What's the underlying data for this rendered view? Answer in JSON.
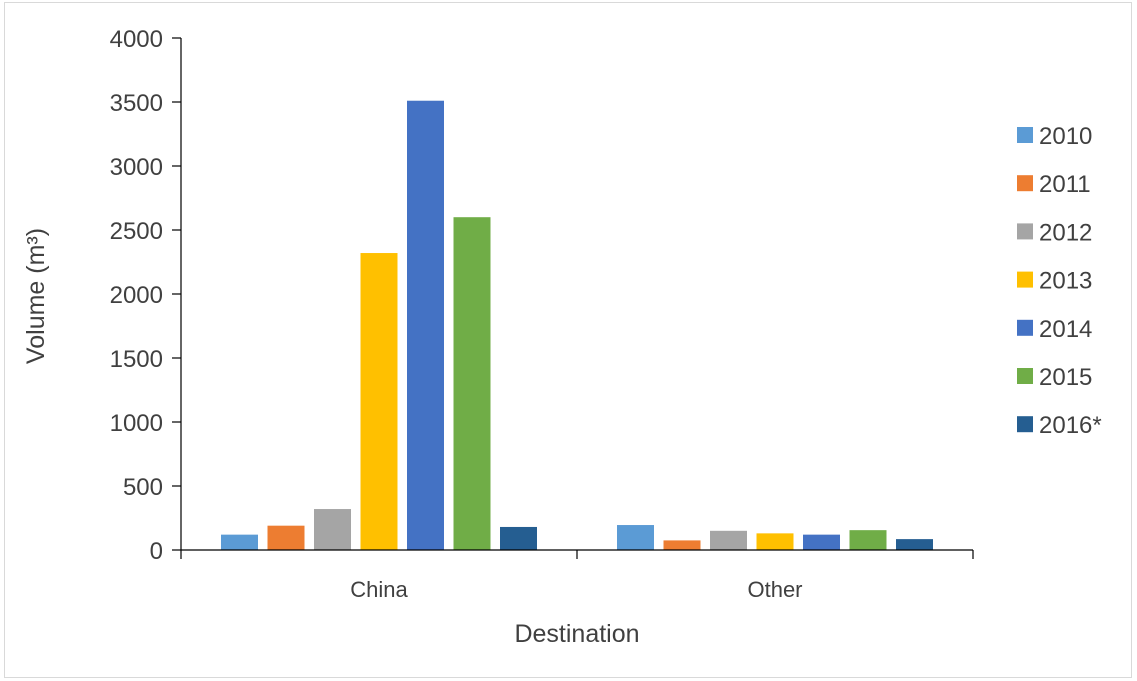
{
  "chart_data": {
    "type": "bar",
    "title": "",
    "xlabel": "Destination",
    "ylabel": "Volume (m³)",
    "ylim": [
      0,
      4000
    ],
    "yticks": [
      0,
      500,
      1000,
      1500,
      2000,
      2500,
      3000,
      3500,
      4000
    ],
    "categories": [
      "China",
      "Other"
    ],
    "series": [
      {
        "name": "2010",
        "color": "#5b9bd5",
        "values": [
          120,
          195
        ]
      },
      {
        "name": "2011",
        "color": "#ed7d31",
        "values": [
          190,
          75
        ]
      },
      {
        "name": "2012",
        "color": "#a5a5a5",
        "values": [
          320,
          150
        ]
      },
      {
        "name": "2013",
        "color": "#ffc000",
        "values": [
          2320,
          130
        ]
      },
      {
        "name": "2014",
        "color": "#4472c4",
        "values": [
          3510,
          120
        ]
      },
      {
        "name": "2015",
        "color": "#70ad47",
        "values": [
          2600,
          155
        ]
      },
      {
        "name": "2016*",
        "color": "#255e91",
        "values": [
          180,
          85
        ]
      }
    ],
    "grid": false,
    "legend_position": "right"
  }
}
